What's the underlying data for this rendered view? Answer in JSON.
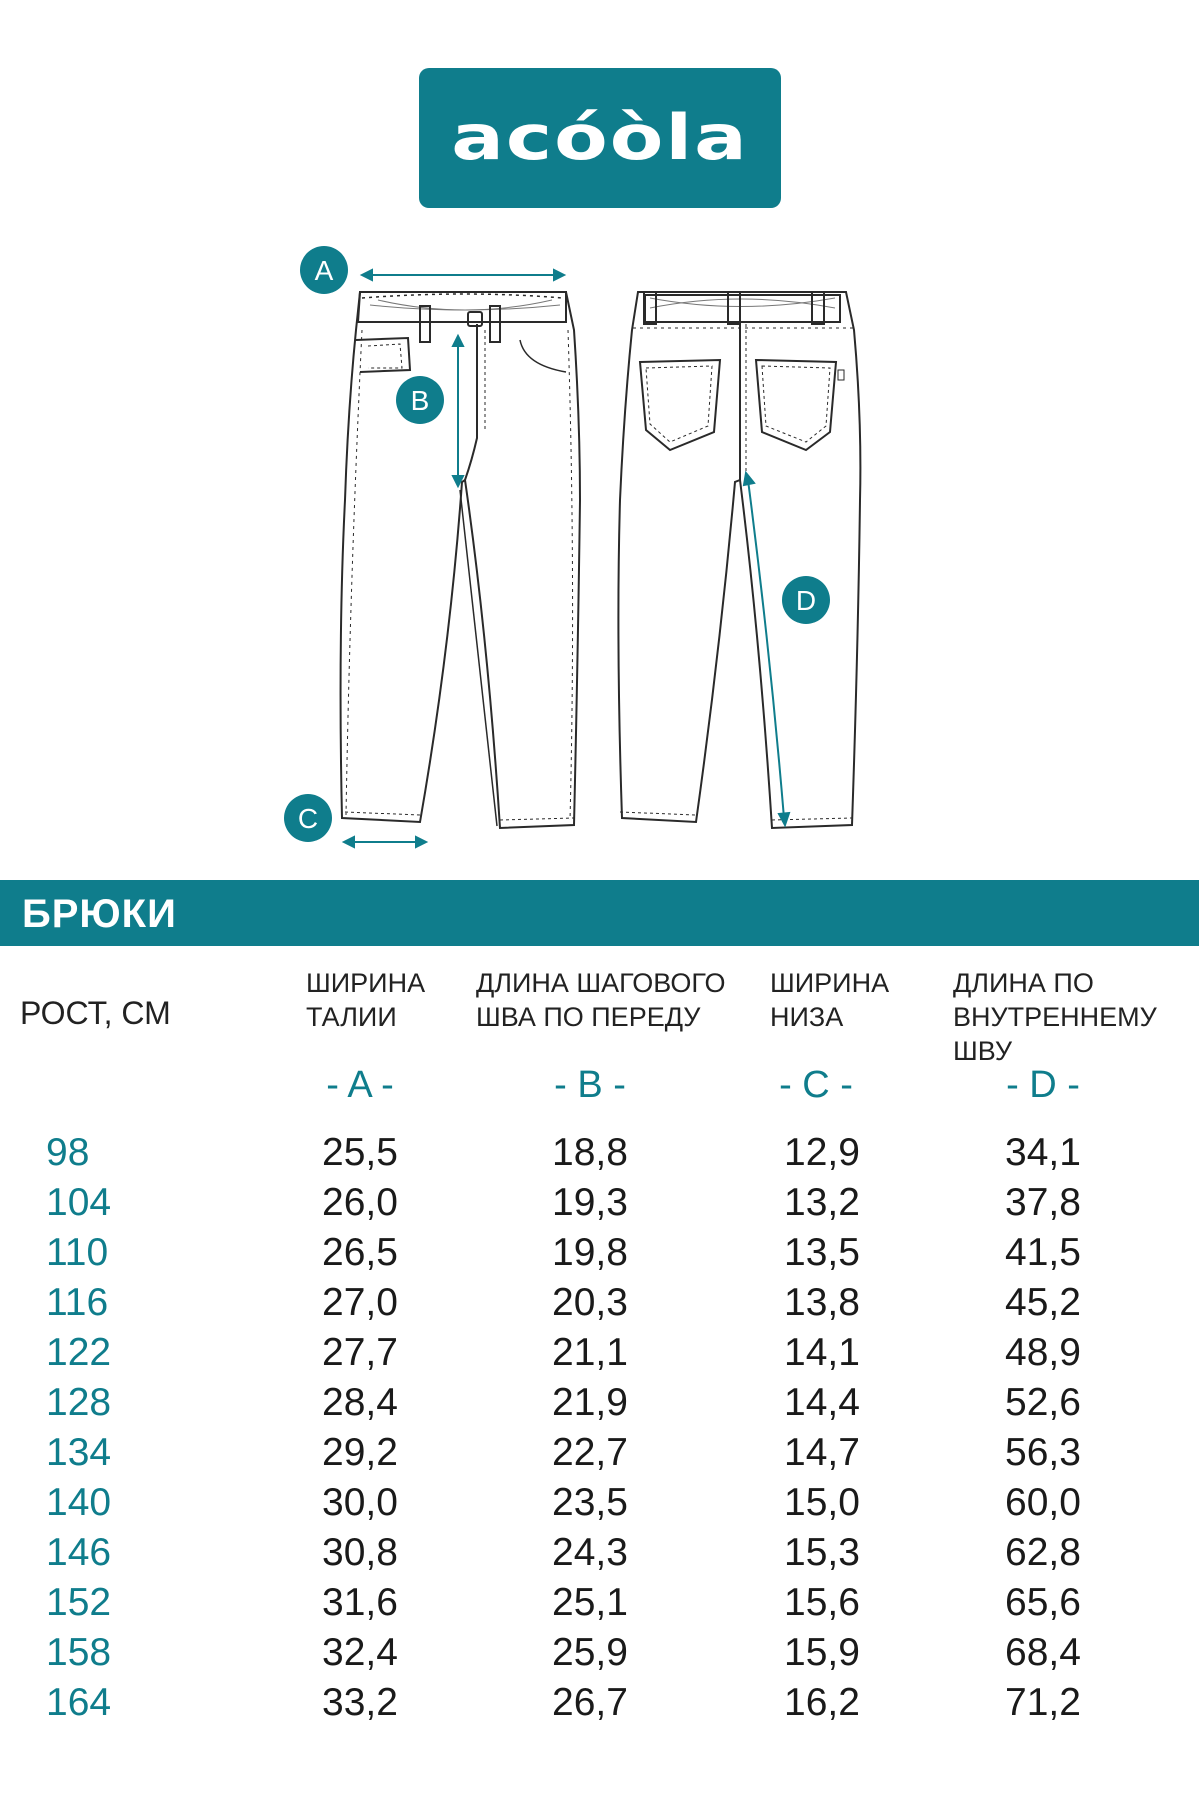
{
  "brand": {
    "logo_text": "acóòla",
    "accent_color": "#0f7d8c"
  },
  "diagram": {
    "markers": [
      "A",
      "B",
      "C",
      "D"
    ]
  },
  "section_title": "БРЮКИ",
  "columns": {
    "height": "РОСТ, СМ",
    "a": {
      "line1": "ШИРИНА",
      "line2": "ТАЛИИ",
      "mark": "- A -"
    },
    "b": {
      "line1": "ДЛИНА ШАГОВОГО",
      "line2": "ШВА ПО ПЕРЕДУ",
      "mark": "- B -"
    },
    "c": {
      "line1": "ШИРИНА",
      "line2": "НИЗА",
      "mark": "- C -"
    },
    "d": {
      "line1": "ДЛИНА ПО",
      "line2": "ВНУТРЕННЕМУ ШВУ",
      "mark": "- D -"
    }
  },
  "rows": [
    {
      "height": "98",
      "a": "25,5",
      "b": "18,8",
      "c": "12,9",
      "d": "34,1"
    },
    {
      "height": "104",
      "a": "26,0",
      "b": "19,3",
      "c": "13,2",
      "d": "37,8"
    },
    {
      "height": "110",
      "a": "26,5",
      "b": "19,8",
      "c": "13,5",
      "d": "41,5"
    },
    {
      "height": "116",
      "a": "27,0",
      "b": "20,3",
      "c": "13,8",
      "d": "45,2"
    },
    {
      "height": "122",
      "a": "27,7",
      "b": "21,1",
      "c": "14,1",
      "d": "48,9"
    },
    {
      "height": "128",
      "a": "28,4",
      "b": "21,9",
      "c": "14,4",
      "d": "52,6"
    },
    {
      "height": "134",
      "a": "29,2",
      "b": "22,7",
      "c": "14,7",
      "d": "56,3"
    },
    {
      "height": "140",
      "a": "30,0",
      "b": "23,5",
      "c": "15,0",
      "d": "60,0"
    },
    {
      "height": "146",
      "a": "30,8",
      "b": "24,3",
      "c": "15,3",
      "d": "62,8"
    },
    {
      "height": "152",
      "a": "31,6",
      "b": "25,1",
      "c": "15,6",
      "d": "65,6"
    },
    {
      "height": "158",
      "a": "32,4",
      "b": "25,9",
      "c": "15,9",
      "d": "68,4"
    },
    {
      "height": "164",
      "a": "33,2",
      "b": "26,7",
      "c": "16,2",
      "d": "71,2"
    }
  ]
}
